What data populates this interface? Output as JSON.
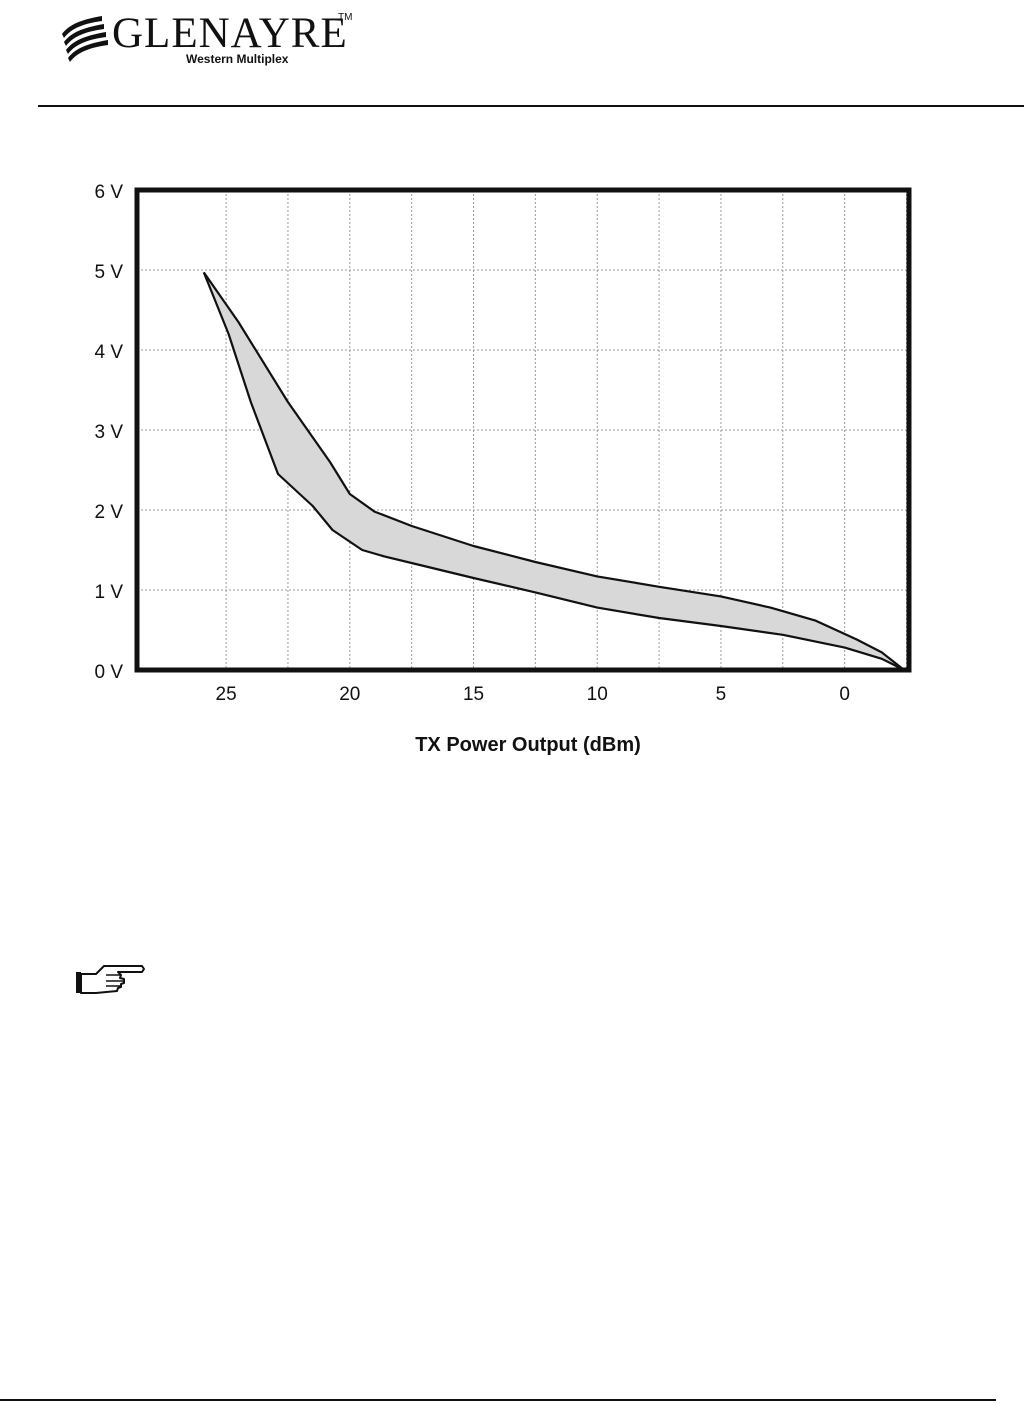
{
  "logo": {
    "name": "GLENAYRE",
    "trademark": "TM",
    "subtitle": "Western Multiplex"
  },
  "chart_data": {
    "type": "area",
    "title": "",
    "xlabel": "TX Power Output (dBm)",
    "ylabel": "",
    "xlim": [
      -2.6,
      28.6
    ],
    "ylim": [
      0,
      6
    ],
    "x_reversed": true,
    "x_ticks": [
      25,
      20,
      15,
      10,
      5,
      0
    ],
    "y_ticks": [
      {
        "value": 0,
        "label": "0 V"
      },
      {
        "value": 1,
        "label": "1 V"
      },
      {
        "value": 2,
        "label": "2 V"
      },
      {
        "value": 3,
        "label": "3 V"
      },
      {
        "value": 4,
        "label": "4 V"
      },
      {
        "value": 5,
        "label": "5 V"
      },
      {
        "value": 6,
        "label": "6 V"
      }
    ],
    "grid": true,
    "fill_color": "#d8d8d8",
    "series": [
      {
        "x": [
          25.9,
          24.5,
          22.5,
          20.8,
          20.0,
          19.0,
          17.5,
          15.0,
          12.5,
          10.0,
          7.5,
          5.0,
          3.0,
          1.2,
          -0.5,
          -1.5,
          -2.4
        ],
        "y": [
          4.97,
          4.35,
          3.35,
          2.6,
          2.2,
          1.98,
          1.8,
          1.55,
          1.35,
          1.17,
          1.04,
          0.92,
          0.78,
          0.62,
          0.38,
          0.22,
          0.0
        ]
      },
      {
        "x": [
          25.9,
          24.9,
          24.0,
          22.9,
          21.5,
          20.7,
          19.5,
          18.6,
          17.0,
          15.0,
          12.5,
          10.0,
          7.5,
          5.0,
          2.5,
          0.0,
          -1.5,
          -2.4
        ],
        "y": [
          4.97,
          4.2,
          3.35,
          2.45,
          2.05,
          1.75,
          1.5,
          1.42,
          1.3,
          1.15,
          0.97,
          0.78,
          0.65,
          0.55,
          0.44,
          0.28,
          0.14,
          0.0
        ]
      }
    ]
  }
}
